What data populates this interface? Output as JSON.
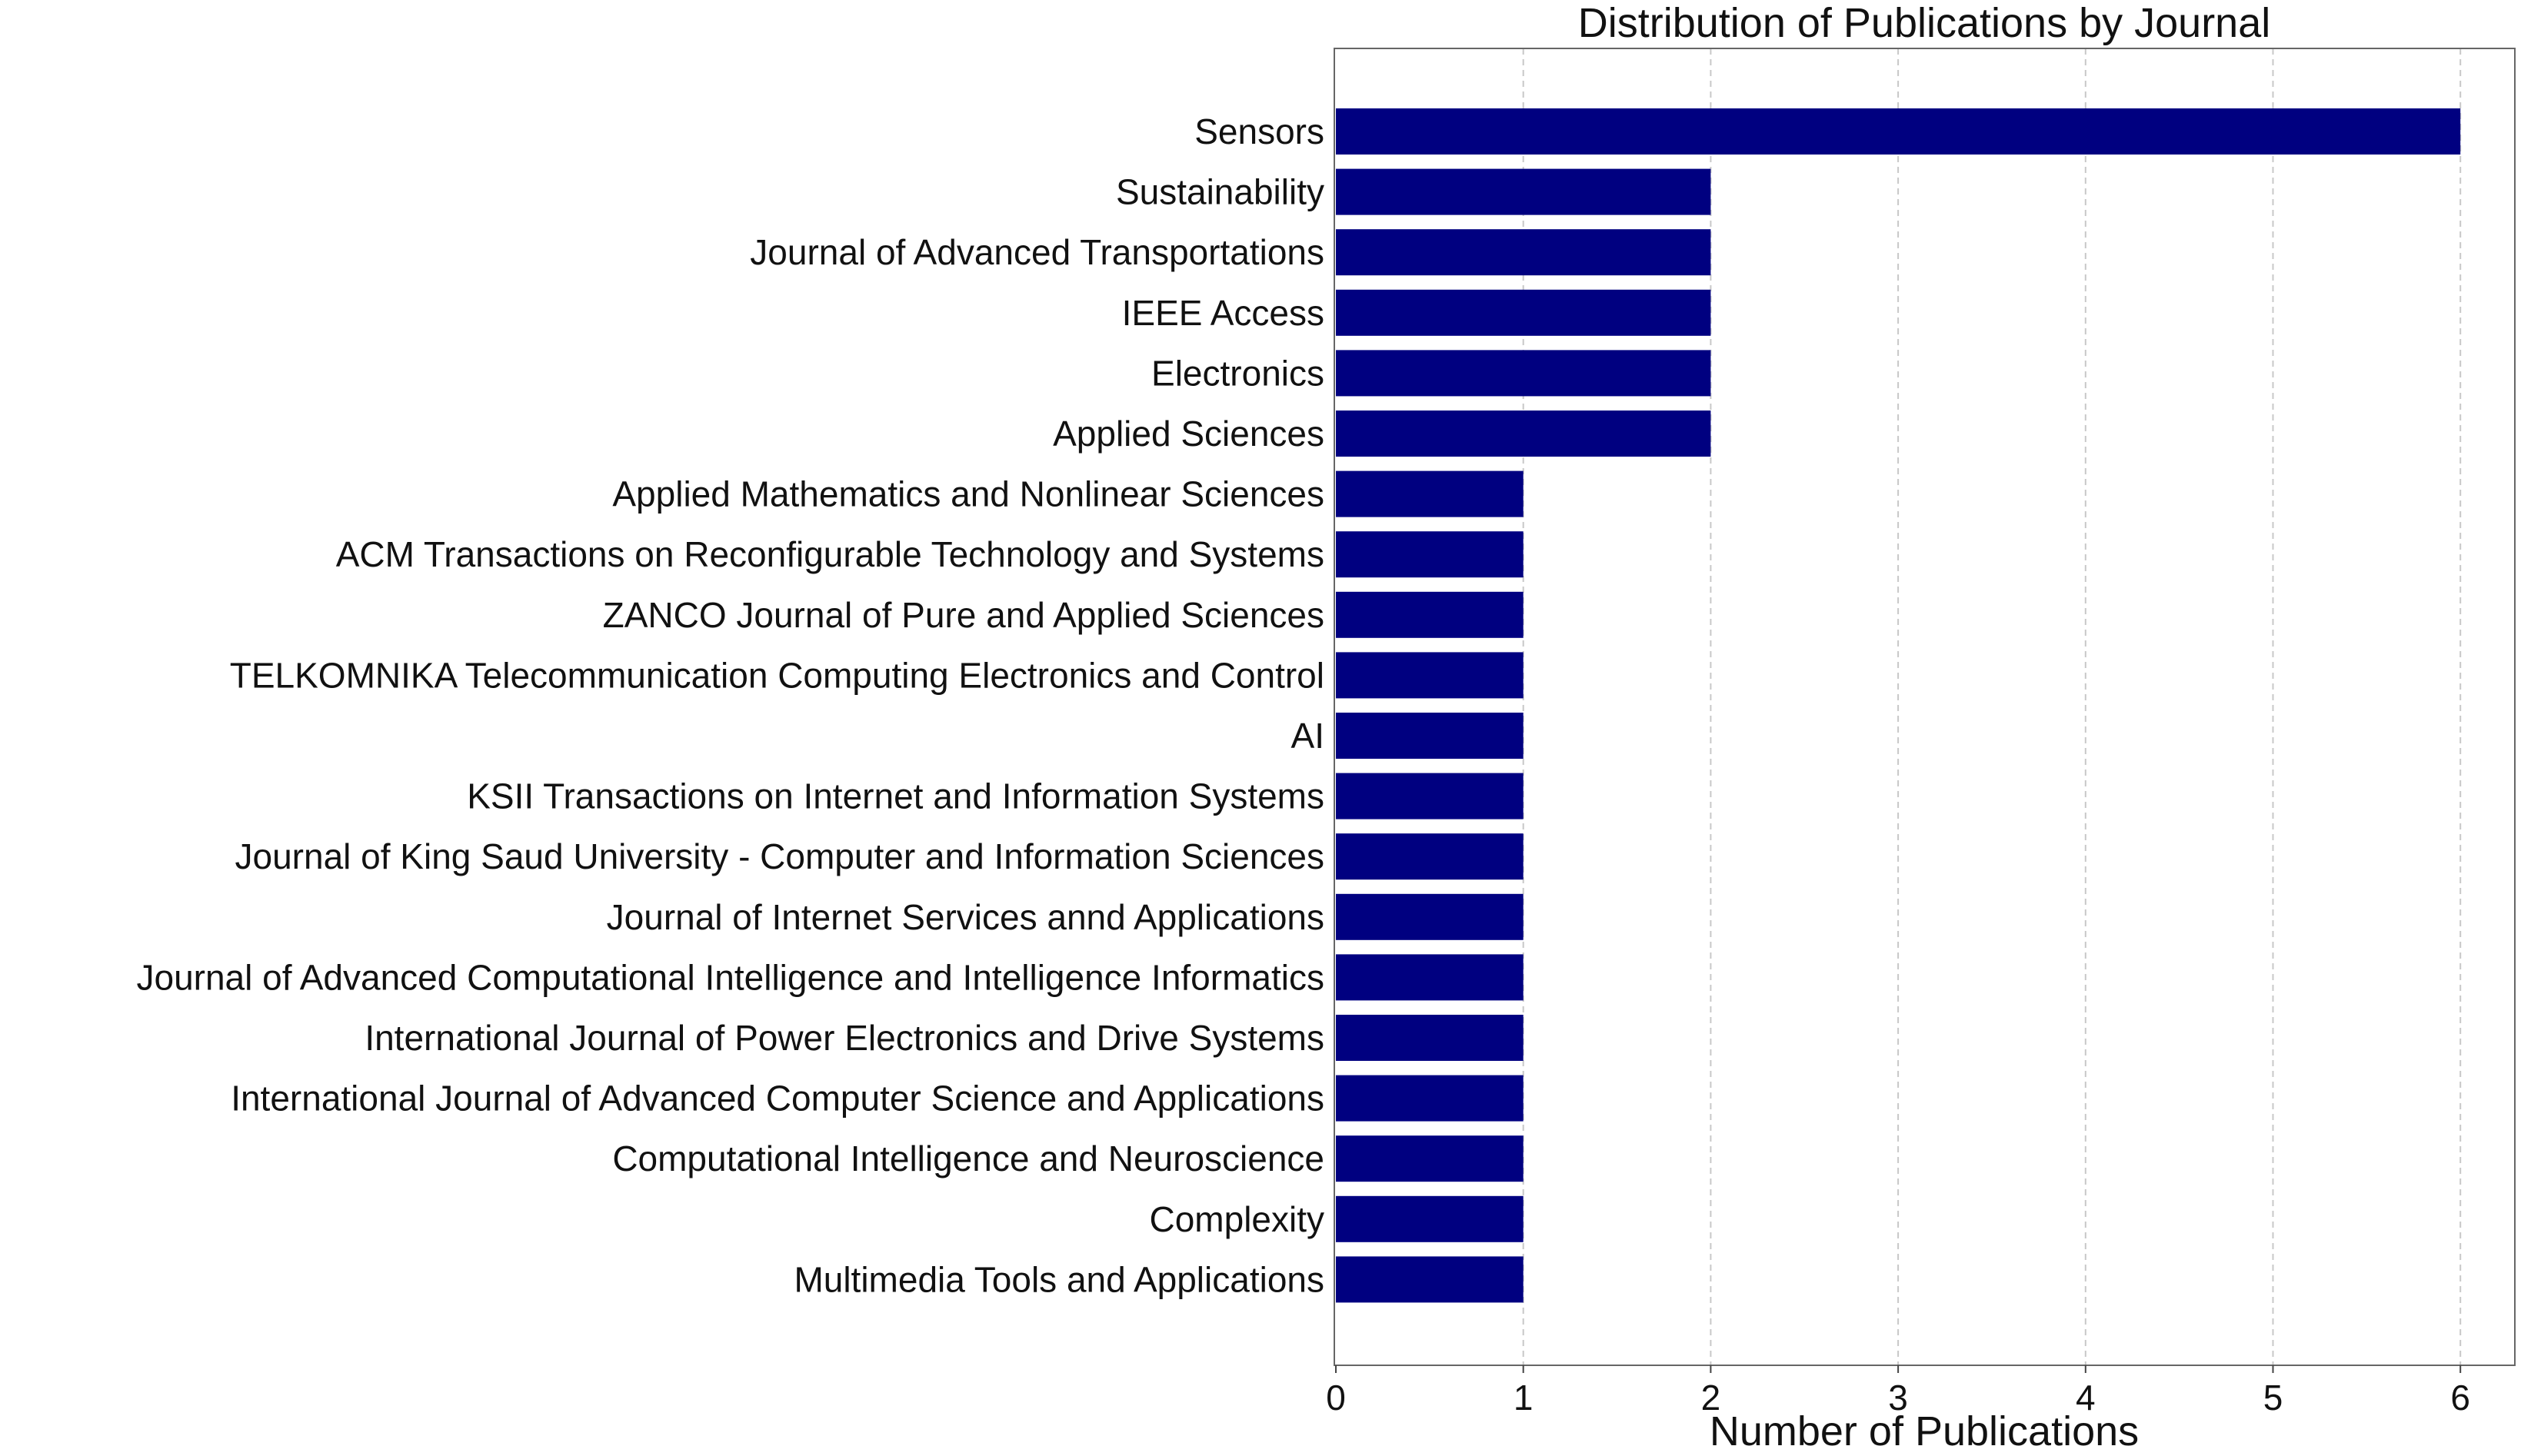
{
  "chart_data": {
    "type": "bar",
    "orientation": "horizontal",
    "title": "Distribution of Publications by Journal",
    "xlabel": "Number of Publications",
    "ylabel": "",
    "xlim": [
      0,
      6.3
    ],
    "xticks": [
      0,
      1,
      2,
      3,
      4,
      5,
      6
    ],
    "grid": "x-dashed",
    "bar_color": "#000080",
    "categories": [
      "Sensors",
      "Sustainability",
      "Journal of Advanced Transportations",
      "IEEE Access",
      "Electronics",
      "Applied Sciences",
      "Applied Mathematics and Nonlinear Sciences",
      "ACM Transactions on Reconfigurable Technology and Systems",
      "ZANCO Journal of Pure and Applied Sciences",
      "TELKOMNIKA Telecommunication Computing Electronics and Control",
      "AI",
      "KSII Transactions on Internet and Information Systems",
      "Journal of King Saud University - Computer and Information Sciences",
      "Journal of Internet Services annd Applications",
      "Journal of Advanced Computational Intelligence and Intelligence Informatics",
      "International Journal of Power Electronics and Drive Systems",
      "International Journal of Advanced Computer Science and Applications",
      "Computational Intelligence and Neuroscience",
      "Complexity",
      "Multimedia Tools and Applications"
    ],
    "values": [
      6,
      2,
      2,
      2,
      2,
      2,
      1,
      1,
      1,
      1,
      1,
      1,
      1,
      1,
      1,
      1,
      1,
      1,
      1,
      1
    ]
  }
}
